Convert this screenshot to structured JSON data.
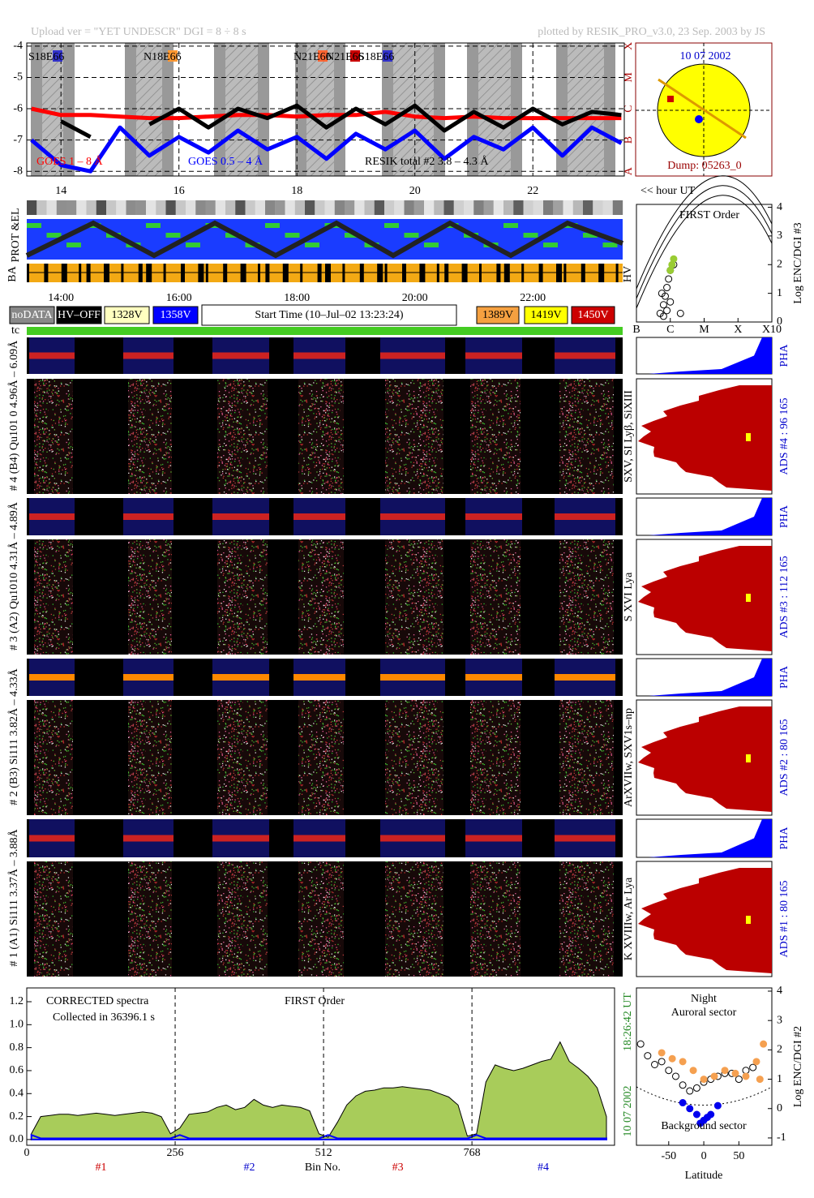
{
  "header": {
    "upload": "Upload ver = \"YET UNDESCR\"  DGI =   8 ÷   8 s",
    "plotted": "plotted by RESIK_PRO_v3.0, 23 Sep. 2003 by JS"
  },
  "sun_panel": {
    "date": "10 07 2002",
    "dump": "Dump: 05263_0"
  },
  "status_panel": {
    "hour_unit": "<< hour UT",
    "strip_labels": [
      "PROT &EL",
      "BA",
      "HV",
      "tc"
    ],
    "time_labels": [
      "14:00",
      "16:00",
      "18:00",
      "20:00",
      "22:00"
    ],
    "legend": [
      "noDATA",
      "HV–OFF",
      "1328V",
      "1358V",
      "1389V",
      "1419V",
      "1450V"
    ],
    "start_time": "Start Time (10–Jul–02 13:23:24)"
  },
  "channels": [
    {
      "label": "# 4 (B4) Qu101 0 4.96Å – 6.09Å",
      "lines": "SXV, SI Lyβ, SiXIII",
      "pha_label": "PHA",
      "ads": "ADS #4 :   96 165"
    },
    {
      "label": "# 3 (A2) Qu1010 4.31Å – 4.89Å",
      "lines": "S XVI Lya",
      "pha_label": "PHA",
      "ads": "ADS #3 :  112 165"
    },
    {
      "label": "# 2 (B3) Si111 3.82Å – 4.33Å",
      "lines": "ArXVIIw, SXV1s–np",
      "pha_label": "PHA",
      "ads": "ADS #2 :   80 165"
    },
    {
      "label": "# 1 (A1) Si111 3.37Å – 3.88Å",
      "lines": "K XVIIIw, Ar Lya",
      "pha_label": "PHA",
      "ads": "ADS #1 :   80 165"
    }
  ],
  "chart_data": [
    {
      "type": "line",
      "x": [
        13.5,
        14,
        14.5,
        15,
        15.5,
        16,
        16.5,
        17,
        17.5,
        18,
        18.5,
        19,
        19.5,
        20,
        20.5,
        21,
        21.5,
        22,
        22.5,
        23,
        23.5
      ],
      "xlim": [
        13.42,
        23.55
      ],
      "xticks": [
        14,
        16,
        18,
        20,
        22
      ],
      "ylim": [
        -8.15,
        -3.9
      ],
      "yticks": [
        -4,
        -5,
        -6,
        -7,
        -8
      ],
      "y2lim": [
        -8.15,
        -3.9
      ],
      "y2ticks": [
        {
          "value": -4,
          "label": "X"
        },
        {
          "value": -5,
          "label": "M"
        },
        {
          "value": -6,
          "label": "C"
        },
        {
          "value": -7,
          "label": "B"
        },
        {
          "value": -8,
          "label": "A"
        }
      ],
      "grid": true,
      "series": [
        {
          "name": "GOES 1 – 8 Å",
          "color": "#ff0000",
          "values": [
            -6.0,
            -6.2,
            -6.2,
            -6.25,
            -6.3,
            -6.3,
            -6.25,
            -6.2,
            -6.2,
            -6.25,
            -6.2,
            -6.2,
            -6.1,
            -6.25,
            -6.3,
            -6.25,
            -6.3,
            -6.3,
            -6.3,
            -6.3,
            -6.3
          ]
        },
        {
          "name": "GOES 0.5 – 4 Å",
          "color": "#0000ff",
          "values": [
            -7.0,
            -7.8,
            -8.0,
            -6.6,
            -7.5,
            -6.9,
            -7.4,
            -6.7,
            -7.3,
            -6.9,
            -7.6,
            -6.8,
            -7.3,
            -6.7,
            -7.6,
            -6.9,
            -7.3,
            -6.6,
            -7.5,
            -6.6,
            -7.1
          ]
        },
        {
          "name": "RESIK total #2  3.8 – 4.3 Å",
          "color": "#000000",
          "values": [
            null,
            -6.4,
            -6.9,
            null,
            -6.5,
            -6.0,
            -6.6,
            -6.0,
            -6.3,
            -5.9,
            -6.6,
            -6.0,
            -6.5,
            -5.9,
            -6.7,
            -6.1,
            -6.6,
            -6.0,
            -6.5,
            -6.1,
            -6.2
          ]
        }
      ],
      "annotations": [
        "S18E66",
        "N18E66",
        "N21E66",
        "N21E66",
        "S18E66"
      ]
    },
    {
      "type": "scatter",
      "title": "FIRST Order",
      "y_label": "Log ENC/DGI #3",
      "xlim": [
        -7,
        -3
      ],
      "xticks": [
        {
          "value": -7,
          "label": "B"
        },
        {
          "value": -6,
          "label": "C"
        },
        {
          "value": -5,
          "label": "M"
        },
        {
          "value": -4,
          "label": "X"
        },
        {
          "value": -3,
          "label": "X10"
        }
      ],
      "ylim": [
        0,
        4.1
      ],
      "yticks": [
        0,
        1,
        2,
        3,
        4
      ],
      "series": [
        {
          "color": "#000000",
          "x": [
            -6.3,
            -6.2,
            -6.15,
            -6.1,
            -6.05,
            -6.0,
            -6.2,
            -6.1,
            -5.7,
            -6.25,
            -6.0,
            -5.9
          ],
          "values": [
            0.3,
            0.6,
            0.9,
            1.2,
            1.5,
            1.8,
            0.2,
            0.4,
            0.3,
            1.0,
            0.7,
            2.0
          ]
        },
        {
          "color": "#99cc33",
          "x": [
            -6.0,
            -5.95,
            -5.9
          ],
          "values": [
            1.8,
            2.0,
            2.2
          ]
        }
      ]
    },
    {
      "type": "area",
      "title": "FIRST Order",
      "notes": [
        "CORRECTED spectra",
        "Collected in 36396.1 s"
      ],
      "x_label": "Bin No.",
      "section_labels": [
        "#1",
        "#2",
        "#3",
        "#4"
      ],
      "side_labels": [
        "10 07 2002",
        "18:26:42 UT"
      ],
      "xlim": [
        0,
        1014
      ],
      "xticks": [
        0,
        256,
        512,
        768
      ],
      "ylim": [
        -0.05,
        1.32
      ],
      "yticks": [
        {
          "value": 0,
          "label": "0.0"
        },
        0.2,
        0.4,
        0.6,
        0.8,
        {
          "value": 1,
          "label": "1.0"
        },
        1.2
      ],
      "x": [
        8,
        24,
        40,
        56,
        72,
        88,
        104,
        120,
        136,
        152,
        168,
        184,
        200,
        216,
        232,
        248,
        264,
        280,
        296,
        312,
        328,
        344,
        360,
        376,
        392,
        408,
        424,
        440,
        456,
        472,
        488,
        504,
        520,
        536,
        552,
        568,
        584,
        600,
        616,
        632,
        648,
        664,
        680,
        696,
        712,
        728,
        744,
        760,
        776,
        792,
        808,
        824,
        840,
        856,
        872,
        888,
        904,
        920,
        936,
        952,
        968,
        984,
        1000
      ],
      "series": [
        {
          "color": "#a8cc5a",
          "values": [
            0.05,
            0.2,
            0.21,
            0.22,
            0.22,
            0.21,
            0.22,
            0.23,
            0.22,
            0.21,
            0.22,
            0.23,
            0.24,
            0.23,
            0.2,
            0.05,
            0.1,
            0.22,
            0.23,
            0.24,
            0.28,
            0.3,
            0.26,
            0.28,
            0.35,
            0.3,
            0.28,
            0.3,
            0.29,
            0.28,
            0.25,
            0.05,
            0.02,
            0.15,
            0.3,
            0.38,
            0.42,
            0.43,
            0.45,
            0.45,
            0.46,
            0.45,
            0.44,
            0.43,
            0.4,
            0.37,
            0.3,
            0.03,
            0.05,
            0.5,
            0.65,
            0.62,
            0.6,
            0.62,
            0.65,
            0.68,
            0.7,
            0.85,
            0.68,
            0.62,
            0.55,
            0.45,
            0.2
          ]
        },
        {
          "color": "#0000ff",
          "values": [
            0.04,
            0.01,
            0.01,
            0.01,
            0.01,
            0.01,
            0.01,
            0.01,
            0.01,
            0.01,
            0.01,
            0.01,
            0.01,
            0.01,
            0.01,
            0.01,
            0.04,
            0.01,
            0.01,
            0.01,
            0.01,
            0.01,
            0.01,
            0.01,
            0.01,
            0.01,
            0.01,
            0.01,
            0.01,
            0.01,
            0.01,
            0.01,
            0.04,
            0.01,
            0.01,
            0.01,
            0.01,
            0.01,
            0.01,
            0.01,
            0.01,
            0.01,
            0.01,
            0.01,
            0.01,
            0.01,
            0.01,
            0.01,
            0.04,
            0.01,
            0.01,
            0.01,
            0.01,
            0.01,
            0.01,
            0.01,
            0.01,
            0.01,
            0.01,
            0.01,
            0.01,
            0.01,
            0.01
          ]
        }
      ]
    },
    {
      "type": "scatter",
      "title": "Night",
      "labels": [
        "Auroral sector",
        "Background sector"
      ],
      "x_label": "Latitude",
      "y_label": "Log ENC/DGI #2",
      "xlim": [
        -96,
        97
      ],
      "xticks": [
        -50,
        0,
        50
      ],
      "ylim": [
        -1.25,
        4.11
      ],
      "yticks": [
        -1,
        0,
        1,
        2,
        3,
        4
      ],
      "series": [
        {
          "color": "#000000",
          "x": [
            -90,
            -80,
            -70,
            -60,
            -50,
            -40,
            -30,
            -20,
            -10,
            0,
            10,
            20,
            30,
            40,
            50,
            60,
            70
          ],
          "values": [
            2.2,
            1.8,
            1.5,
            1.6,
            1.3,
            1.1,
            0.8,
            0.6,
            0.7,
            0.9,
            1.0,
            1.1,
            1.2,
            1.2,
            1.0,
            1.3,
            1.4
          ]
        },
        {
          "color": "#f5a050",
          "x": [
            -60,
            -45,
            -30,
            -15,
            0,
            15,
            30,
            45,
            60,
            75,
            85,
            80
          ],
          "values": [
            1.9,
            1.7,
            1.6,
            1.3,
            1.0,
            1.1,
            1.3,
            1.2,
            1.1,
            1.6,
            2.2,
            1.0
          ]
        },
        {
          "color": "#0000ee",
          "x": [
            -30,
            -20,
            -10,
            0,
            10,
            20,
            -5,
            5
          ],
          "values": [
            0.2,
            0,
            -0.2,
            -0.4,
            -0.2,
            0.1,
            -0.5,
            -0.3
          ]
        }
      ]
    }
  ]
}
